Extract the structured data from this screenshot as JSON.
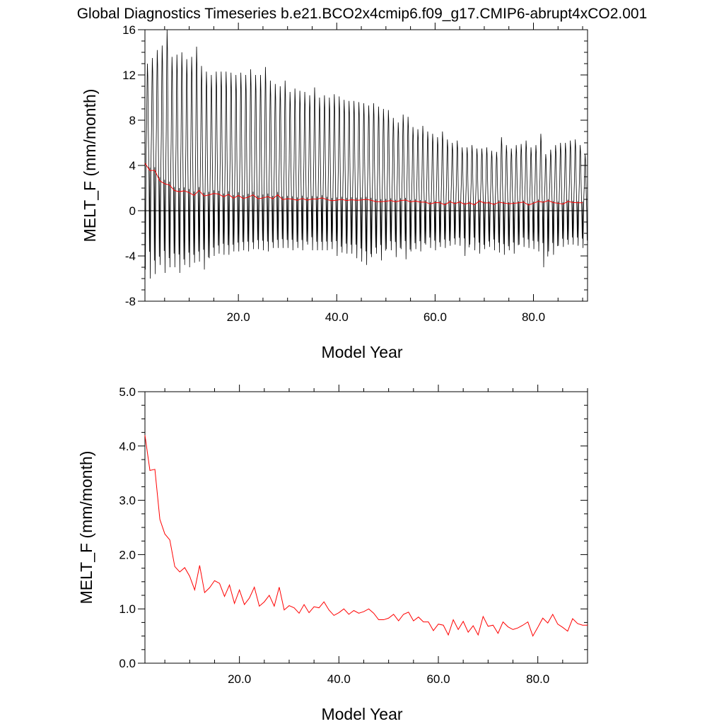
{
  "figure": {
    "title": "Global Diagnostics Timeseries b.e21.BCO2x4cmip6.f09_g17.CMIP6-abrupt4xCO2.001"
  },
  "chart_data": [
    {
      "type": "line",
      "xlabel": "Model Year",
      "ylabel": "MELT_F (mm/month)",
      "xlim": [
        1,
        91
      ],
      "ylim": [
        -8,
        16
      ],
      "xticks": [
        20,
        40,
        60,
        80
      ],
      "xtick_labels": [
        "20.0",
        "40.0",
        "60.0",
        "80.0"
      ],
      "yticks": [
        -8,
        -4,
        0,
        4,
        8,
        12,
        16
      ],
      "ytick_labels": [
        "-8",
        "-4",
        "0",
        "4",
        "8",
        "12",
        "16"
      ],
      "zero_line": true,
      "series": [
        {
          "kind": "monthly",
          "color": "#000000",
          "seasonal_cycle": [
            0.3,
            -3.0,
            -1.2,
            1.5,
            4.0,
            8.5,
            11.5,
            10.0,
            5.0,
            1.5,
            -0.5,
            -2.5
          ],
          "annual_max": [
            13.0,
            13.5,
            14.2,
            14.6,
            16.0,
            13.6,
            13.8,
            14.0,
            13.4,
            13.6,
            14.5,
            12.8,
            12.3,
            12.0,
            12.3,
            12.3,
            12.3,
            12.2,
            12.0,
            12.2,
            12.0,
            12.5,
            12.0,
            12.0,
            12.7,
            11.5,
            11.2,
            11.0,
            11.5,
            10.5,
            10.8,
            10.6,
            10.5,
            10.2,
            10.9,
            10.0,
            10.2,
            10.0,
            10.3,
            10.1,
            9.8,
            9.7,
            9.7,
            9.6,
            9.5,
            9.3,
            9.5,
            9.2,
            9.0,
            8.9,
            8.2,
            7.8,
            8.5,
            8.3,
            7.4,
            7.2,
            7.5,
            7.0,
            6.8,
            6.5,
            7.0,
            6.3,
            6.0,
            6.2,
            5.6,
            5.6,
            5.8,
            5.5,
            5.5,
            5.6,
            5.3,
            5.2,
            6.5,
            5.8,
            5.5,
            5.8,
            5.9,
            6.2,
            5.6,
            5.8,
            6.8,
            5.0,
            5.4,
            5.8,
            6.0,
            6.0,
            6.2,
            6.3,
            5.8,
            5.0
          ],
          "annual_min": [
            -5.2,
            -6.0,
            -5.6,
            -4.8,
            -5.5,
            -5.0,
            -5.0,
            -5.5,
            -4.8,
            -5.0,
            -4.6,
            -4.5,
            -5.2,
            -4.2,
            -4.0,
            -3.8,
            -3.9,
            -3.9,
            -3.6,
            -3.6,
            -3.5,
            -3.6,
            -3.4,
            -3.4,
            -3.5,
            -3.6,
            -3.3,
            -3.3,
            -3.3,
            -3.3,
            -3.5,
            -3.3,
            -3.5,
            -3.0,
            -3.5,
            -3.5,
            -3.5,
            -3.5,
            -3.4,
            -4.0,
            -3.7,
            -3.8,
            -3.8,
            -4.2,
            -4.5,
            -4.8,
            -4.1,
            -3.8,
            -4.4,
            -3.4,
            -3.5,
            -4.1,
            -3.4,
            -4.3,
            -3.6,
            -3.4,
            -3.6,
            -3.0,
            -3.3,
            -3.5,
            -3.2,
            -3.3,
            -3.1,
            -3.0,
            -3.1,
            -4.0,
            -3.0,
            -3.5,
            -3.8,
            -3.4,
            -3.2,
            -3.5,
            -3.7,
            -3.9,
            -3.5,
            -3.8,
            -3.0,
            -3.2,
            -3.3,
            -3.4,
            -3.6,
            -5.0,
            -3.6,
            -3.9,
            -3.1,
            -3.2,
            -3.0,
            -3.0,
            -3.1,
            -3.3
          ]
        },
        {
          "kind": "annual_mean",
          "color": "#ff0000",
          "x": [
            1,
            2,
            3,
            4,
            5,
            6,
            7,
            8,
            9,
            10,
            11,
            12,
            13,
            14,
            15,
            16,
            17,
            18,
            19,
            20,
            21,
            22,
            23,
            24,
            25,
            26,
            27,
            28,
            29,
            30,
            31,
            32,
            33,
            34,
            35,
            36,
            37,
            38,
            39,
            40,
            41,
            42,
            43,
            44,
            45,
            46,
            47,
            48,
            49,
            50,
            51,
            52,
            53,
            54,
            55,
            56,
            57,
            58,
            59,
            60,
            61,
            62,
            63,
            64,
            65,
            66,
            67,
            68,
            69,
            70,
            71,
            72,
            73,
            74,
            75,
            76,
            77,
            78,
            79,
            80,
            81,
            82,
            83,
            84,
            85,
            86,
            87,
            88,
            89,
            90
          ],
          "y": [
            4.2,
            3.55,
            3.57,
            2.65,
            2.38,
            2.27,
            1.78,
            1.68,
            1.76,
            1.6,
            1.35,
            1.8,
            1.3,
            1.39,
            1.52,
            1.47,
            1.23,
            1.44,
            1.1,
            1.35,
            1.08,
            1.2,
            1.4,
            1.05,
            1.13,
            1.25,
            1.05,
            1.4,
            0.98,
            1.06,
            1.02,
            0.92,
            1.08,
            0.93,
            1.04,
            1.02,
            1.13,
            0.98,
            0.88,
            0.93,
            1.0,
            0.9,
            0.97,
            0.92,
            0.95,
            1.0,
            0.92,
            0.8,
            0.8,
            0.83,
            0.9,
            0.78,
            0.9,
            0.94,
            0.78,
            0.85,
            0.76,
            0.76,
            0.6,
            0.72,
            0.7,
            0.52,
            0.8,
            0.62,
            0.77,
            0.57,
            0.69,
            0.52,
            0.86,
            0.68,
            0.7,
            0.55,
            0.76,
            0.67,
            0.62,
            0.65,
            0.7,
            0.76,
            0.5,
            0.66,
            0.83,
            0.74,
            0.9,
            0.72,
            0.66,
            0.59,
            0.82,
            0.73,
            0.7,
            0.7
          ]
        }
      ]
    },
    {
      "type": "line",
      "xlabel": "Model Year",
      "ylabel": "MELT_F (mm/month)",
      "xlim": [
        1,
        90
      ],
      "ylim": [
        0,
        5
      ],
      "xticks": [
        20,
        40,
        60,
        80
      ],
      "xtick_labels": [
        "20.0",
        "40.0",
        "60.0",
        "80.0"
      ],
      "yticks": [
        0,
        1,
        2,
        3,
        4,
        5
      ],
      "ytick_labels": [
        "0.0",
        "1.0",
        "2.0",
        "3.0",
        "4.0",
        "5.0"
      ],
      "series": [
        {
          "kind": "annual_mean",
          "color": "#ff0000",
          "ref": 1
        }
      ]
    }
  ]
}
